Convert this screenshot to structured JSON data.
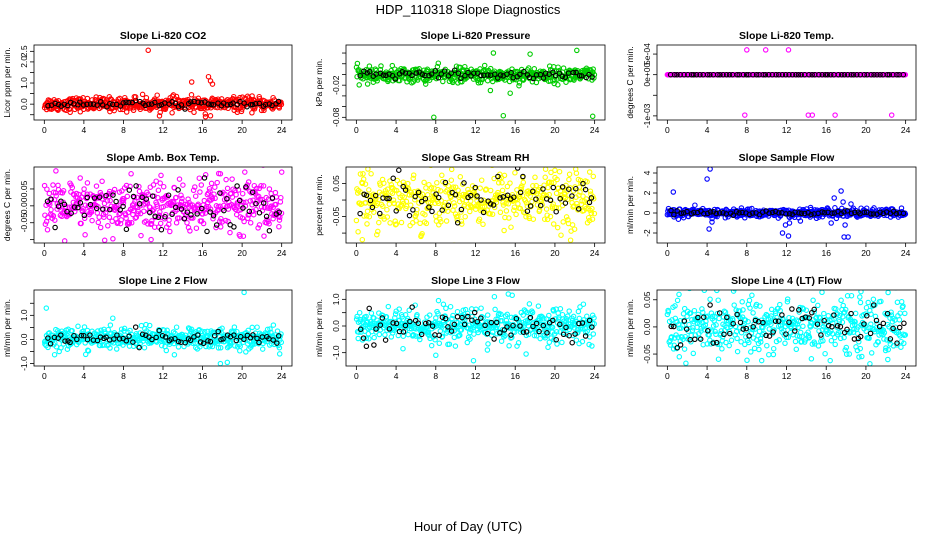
{
  "chart_data": {
    "type": "scatter",
    "title": "HDP_110318  Slope Diagnostics",
    "xlabel": "Hour of Day (UTC)",
    "xlim": [
      0,
      24
    ],
    "x_ticks": [
      0,
      4,
      8,
      12,
      16,
      20,
      24
    ],
    "panels": [
      {
        "title": "Slope Li-820 CO2",
        "ylabel": "Licor ppm per min.",
        "color": "#ff0000",
        "ylim": [
          -0.75,
          2.8
        ],
        "y_ticks": [
          -0.5,
          0.0,
          0.5,
          1.0,
          1.5,
          2.0,
          2.5
        ],
        "y_tick_labels": [
          "",
          "0.0",
          "",
          "1.0",
          "",
          "2.0",
          "2.5"
        ],
        "n_points": 480,
        "spread": 0.16,
        "black_spread": 0.08,
        "mean": 0.0,
        "outliers": [
          [
            10.5,
            2.55
          ],
          [
            14.9,
            1.05
          ],
          [
            16.6,
            1.3
          ],
          [
            16.8,
            1.1
          ],
          [
            17.0,
            0.95
          ],
          [
            16.3,
            -0.6
          ],
          [
            16.8,
            -0.55
          ],
          [
            9.1,
            0.35
          ]
        ]
      },
      {
        "title": "Slope Li-820 Pressure",
        "ylabel": "kPa per min.",
        "color": "#00cc00",
        "ylim": [
          -0.085,
          0.055
        ],
        "y_ticks": [
          -0.08,
          -0.06,
          -0.04,
          -0.02,
          0.0,
          0.02,
          0.04
        ],
        "y_tick_labels": [
          "-0.08",
          "",
          "",
          "-0.02",
          "",
          "",
          ""
        ],
        "n_points": 480,
        "spread": 0.007,
        "black_spread": 0.004,
        "mean": -0.001,
        "outliers": [
          [
            7.8,
            -0.08
          ],
          [
            14.8,
            -0.077
          ],
          [
            23.8,
            -0.078
          ],
          [
            13.5,
            -0.03
          ],
          [
            15.5,
            -0.035
          ],
          [
            13.8,
            0.04
          ],
          [
            17.5,
            0.038
          ],
          [
            22.2,
            0.045
          ]
        ]
      },
      {
        "title": "Slope Li-820 Temp.",
        "ylabel": "degrees C per min.",
        "color": "#ff00ff",
        "ylim": [
          -0.0011,
          0.00072
        ],
        "y_ticks": [
          -0.001,
          -0.0005,
          0.0,
          0.0005
        ],
        "y_tick_labels": [
          "-1e-03",
          "",
          "0e+00",
          "5e-04"
        ],
        "n_points": 480,
        "spread": 0.0,
        "black_spread": 0.0,
        "mean": 0.0,
        "outliers": [
          [
            8.0,
            0.0006
          ],
          [
            9.9,
            0.0006
          ],
          [
            12.2,
            0.0006
          ],
          [
            7.8,
            -0.00098
          ],
          [
            14.2,
            -0.00098
          ],
          [
            14.6,
            -0.00098
          ],
          [
            16.9,
            -0.00098
          ],
          [
            22.6,
            -0.00098
          ]
        ]
      },
      {
        "title": "Slope Amb. Box Temp.",
        "ylabel": "degrees C per min.",
        "color": "#ff00ff",
        "ylim": [
          -0.11,
          0.115
        ],
        "y_ticks": [
          -0.1,
          -0.05,
          0.0,
          0.05
        ],
        "y_tick_labels": [
          "",
          "-0.05",
          "0.00",
          "0.05"
        ],
        "n_points": 480,
        "spread": 0.04,
        "black_spread": 0.035,
        "mean": -0.005,
        "outliers": [
          [
            24.0,
            0.1
          ],
          [
            17.8,
            0.095
          ],
          [
            11.8,
            0.09
          ],
          [
            10.8,
            -0.1
          ],
          [
            19.8,
            -0.09
          ]
        ]
      },
      {
        "title": "Slope Gas Stream RH",
        "ylabel": "percent per min.",
        "color": "#ffff00",
        "ylim": [
          -0.13,
          0.1
        ],
        "y_ticks": [
          -0.1,
          -0.05,
          0.0,
          0.05
        ],
        "y_tick_labels": [
          "",
          "-0.05",
          "",
          "0.05"
        ],
        "n_points": 480,
        "spread": 0.042,
        "black_spread": 0.035,
        "mean": 0.005,
        "outliers": [
          [
            0.6,
            -0.12
          ],
          [
            20.0,
            0.09
          ],
          [
            23.5,
            0.085
          ],
          [
            6.5,
            -0.11
          ]
        ]
      },
      {
        "title": "Slope Sample Flow",
        "ylabel": "ml/min per min.",
        "color": "#0000ff",
        "ylim": [
          -3.0,
          4.6
        ],
        "y_ticks": [
          -2,
          -1,
          0,
          1,
          2,
          3,
          4
        ],
        "y_tick_labels": [
          "-2",
          "",
          "0",
          "",
          "2",
          "",
          "4"
        ],
        "n_points": 480,
        "spread": 0.22,
        "black_spread": 0.12,
        "mean": 0.0,
        "outliers": [
          [
            4.3,
            4.4
          ],
          [
            4.0,
            3.4
          ],
          [
            0.6,
            2.1
          ],
          [
            4.2,
            -1.6
          ],
          [
            4.5,
            -0.9
          ],
          [
            11.6,
            -2.0
          ],
          [
            11.9,
            -1.2
          ],
          [
            12.2,
            -2.3
          ],
          [
            12.3,
            -1.0
          ],
          [
            13.4,
            -0.8
          ],
          [
            17.5,
            2.2
          ],
          [
            17.7,
            1.1
          ],
          [
            17.8,
            -2.4
          ],
          [
            17.9,
            -1.2
          ],
          [
            18.2,
            -2.4
          ],
          [
            18.5,
            0.9
          ],
          [
            16.8,
            1.5
          ],
          [
            16.5,
            -1.0
          ]
        ]
      },
      {
        "title": "Slope Line 2 Flow",
        "ylabel": "ml/min per min.",
        "color": "#00ffff",
        "ylim": [
          -1.1,
          2.05
        ],
        "y_ticks": [
          -1.0,
          -0.5,
          0.0,
          0.5,
          1.0,
          1.5
        ],
        "y_tick_labels": [
          "-1.0",
          "",
          "0.0",
          "",
          "1.0",
          ""
        ],
        "n_points": 480,
        "spread": 0.22,
        "black_spread": 0.14,
        "mean": 0.05,
        "outliers": [
          [
            20.2,
            1.95
          ],
          [
            0.2,
            1.3
          ],
          [
            17.8,
            -1.0
          ],
          [
            18.5,
            -0.95
          ],
          [
            23.8,
            -0.6
          ]
        ]
      },
      {
        "title": "Slope Line 3 Flow",
        "ylabel": "ml/min per min.",
        "color": "#00ffff",
        "ylim": [
          -1.5,
          1.35
        ],
        "y_ticks": [
          -1.0,
          -0.5,
          0.0,
          0.5,
          1.0
        ],
        "y_tick_labels": [
          "-1.0",
          "",
          "0.0",
          "",
          "1.0"
        ],
        "n_points": 480,
        "spread": 0.32,
        "black_spread": 0.28,
        "mean": 0.0,
        "outliers": [
          [
            13.9,
            1.1
          ],
          [
            15.7,
            1.15
          ],
          [
            15.3,
            1.2
          ],
          [
            4.7,
            -0.85
          ],
          [
            8.0,
            -1.1
          ],
          [
            11.8,
            -1.3
          ],
          [
            17.1,
            -1.05
          ],
          [
            19.3,
            -0.8
          ],
          [
            13.2,
            -0.9
          ]
        ]
      },
      {
        "title": "Slope Line 4 (LT) Flow",
        "ylabel": "ml/min per min.",
        "color": "#00ffff",
        "ylim": [
          -0.072,
          0.068
        ],
        "y_ticks": [
          -0.05,
          0.0,
          0.05
        ],
        "y_tick_labels": [
          "-0.05",
          "0.00",
          "0.05"
        ],
        "n_points": 480,
        "spread": 0.025,
        "black_spread": 0.02,
        "mean": 0.002,
        "outliers": [
          [
            19.5,
            0.065
          ],
          [
            20.4,
            -0.068
          ],
          [
            9.5,
            -0.062
          ],
          [
            1.2,
            -0.055
          ],
          [
            22.2,
            -0.06
          ]
        ]
      }
    ]
  }
}
